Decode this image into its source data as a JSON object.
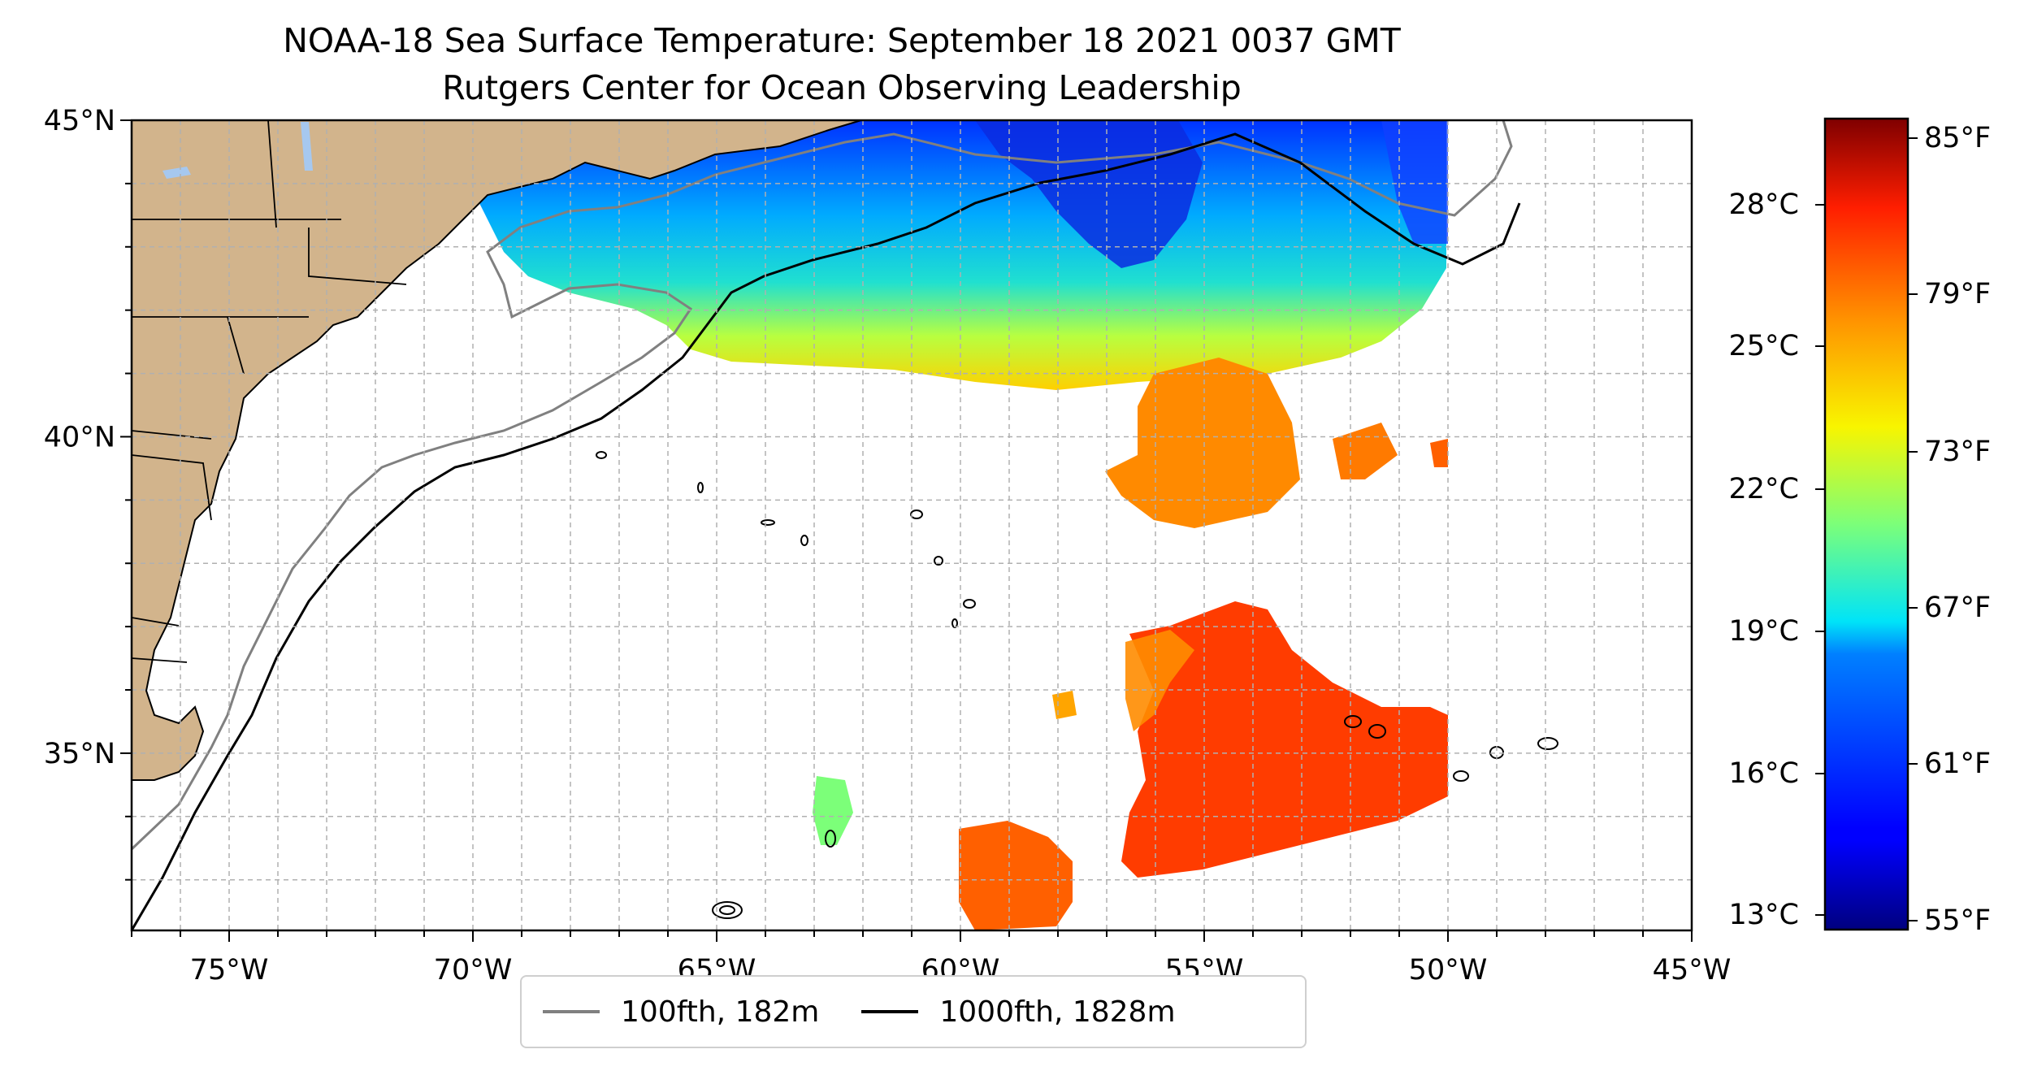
{
  "title": {
    "line1": "NOAA-18 Sea Surface Temperature: September 18 2021 0037 GMT",
    "line2": "Rutgers Center for Ocean Observing Leadership"
  },
  "map": {
    "lon_range": [
      -77,
      -45
    ],
    "lat_range": [
      32.2,
      45
    ],
    "lon_ticks": [
      "75°W",
      "70°W",
      "65°W",
      "60°W",
      "55°W",
      "50°W",
      "45°W"
    ],
    "lat_ticks": [
      "45°N",
      "40°N",
      "35°N"
    ],
    "grid": true,
    "colors": {
      "land": "#d2b48c",
      "lakes": "#a6c8ef",
      "contour_100fth": "#808080",
      "contour_1000fth": "#000000"
    }
  },
  "legend": {
    "items": [
      {
        "label": "100fth, 182m",
        "color": "#808080"
      },
      {
        "label": "1000fth, 1828m",
        "color": "#000000"
      }
    ],
    "placement": "bottom-center"
  },
  "colorbar": {
    "colormap": "jet",
    "celsius_ticks": [
      "28°C",
      "25°C",
      "22°C",
      "19°C",
      "16°C",
      "13°C"
    ],
    "fahrenheit_ticks": [
      "85°F",
      "79°F",
      "73°F",
      "67°F",
      "61°F",
      "55°F"
    ],
    "range_f": [
      55,
      86
    ]
  }
}
